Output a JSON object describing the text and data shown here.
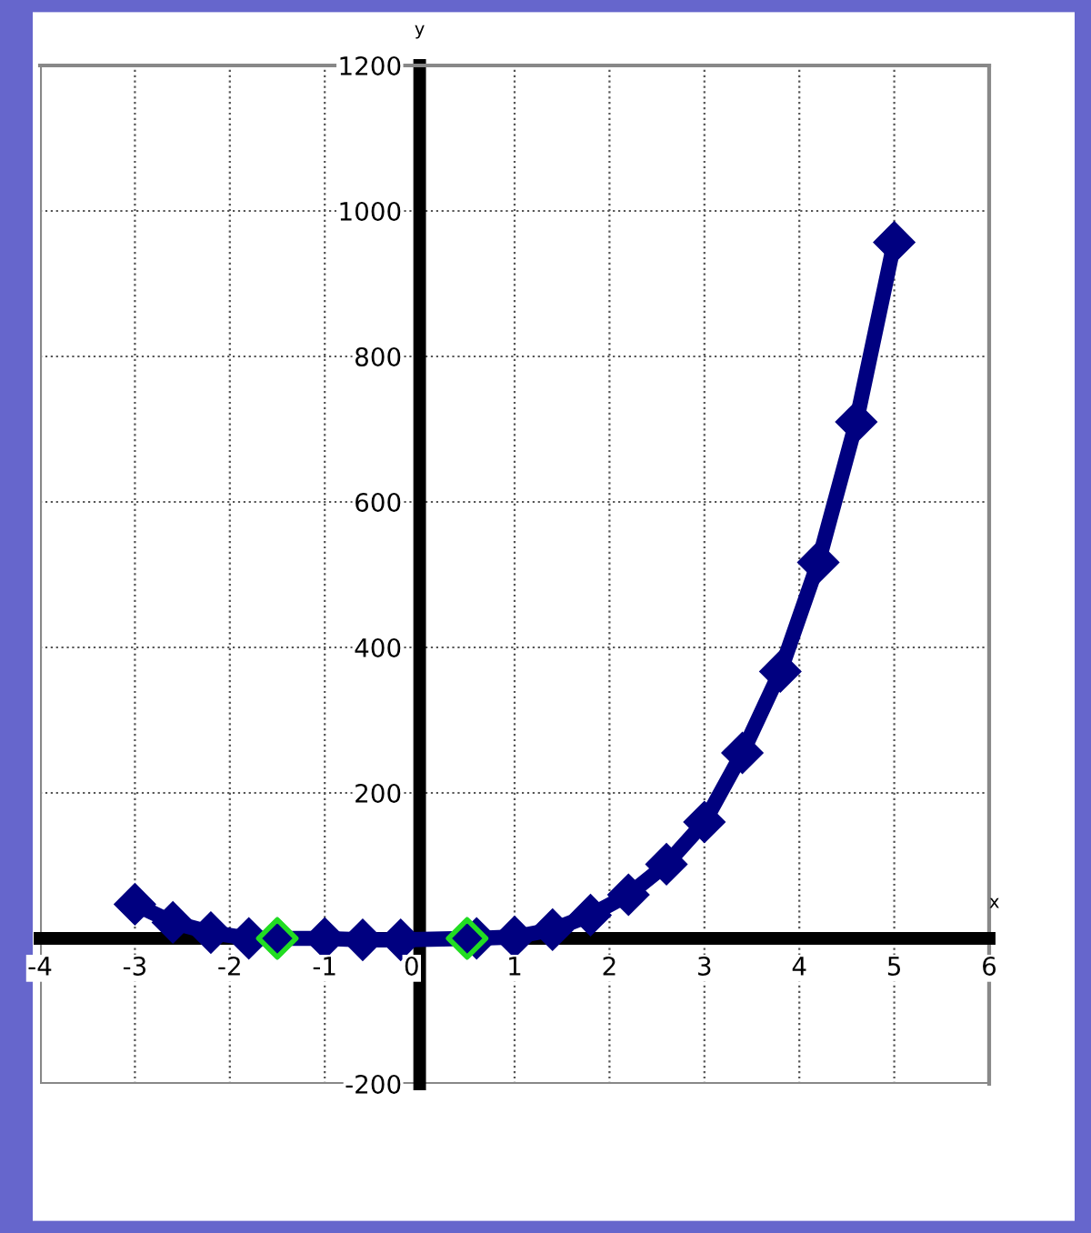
{
  "chart_data": {
    "type": "line",
    "xlabel": "x",
    "ylabel": "y",
    "series": [
      {
        "color": "#000080",
        "x": [
          -3,
          -2.6,
          -2.2,
          -1.8,
          -1.5,
          -1,
          -0.6,
          -0.2,
          0.5,
          0.6,
          1,
          1.4,
          1.8,
          2.2,
          2.6,
          3,
          3.4,
          3.8,
          4.2,
          4.6,
          5
        ],
        "values": [
          47,
          22,
          8,
          0,
          0,
          0,
          -2,
          -2,
          0,
          0,
          2,
          12,
          32,
          60,
          102,
          160,
          255,
          367,
          517,
          710,
          957
        ]
      },
      {
        "type": "scatter",
        "color": "#22dd22",
        "x": [
          -1.5,
          0.5
        ],
        "values": [
          0,
          0
        ]
      }
    ],
    "xlim": [
      -4,
      6
    ],
    "xticks": [
      -4,
      -3,
      -2,
      -1,
      0,
      1,
      2,
      3,
      4,
      5,
      6
    ],
    "ylim": [
      -200,
      1200
    ],
    "yticks": [
      -200,
      {
        "value": 0,
        "label": null
      },
      200,
      400,
      600,
      800,
      1000,
      1200
    ],
    "grid": true,
    "marker": "diamond",
    "line_style": "solid",
    "legend": false
  }
}
